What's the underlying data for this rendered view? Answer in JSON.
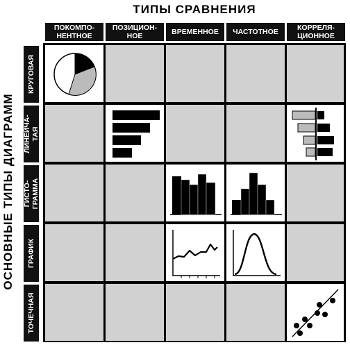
{
  "title_top": "ТИПЫ СРАВНЕНИЯ",
  "title_side": "ОСНОВНЫЕ ТИПЫ ДИАГРАММ",
  "columns": [
    "ПОКОМПО-\nНЕНТНОЕ",
    "ПОЗИЦИОН-\nНОЕ",
    "ВРЕМЕННОЕ",
    "ЧАСТОТНОЕ",
    "КОРРЕЛЯ-\nЦИОННОЕ"
  ],
  "rows": [
    "КРУГОВАЯ",
    "ЛИНЕЙЧА-\nТАЯ",
    "ГИСТО-\nГРАММА",
    "ГРАФИК",
    "ТОЧЕЧНАЯ"
  ],
  "colors": {
    "header_bg": "#111111",
    "inactive_cell": "#d1d1d1",
    "active_cell": "#ffffff",
    "ink": "#000000",
    "light_fill": "#bbbbbb"
  },
  "cells": [
    {
      "row": 0,
      "col": 0,
      "icon": "pie-chart-icon"
    },
    {
      "row": 1,
      "col": 1,
      "icon": "horizontal-bar-chart-icon"
    },
    {
      "row": 1,
      "col": 4,
      "icon": "paired-bar-chart-icon"
    },
    {
      "row": 2,
      "col": 2,
      "icon": "histogram-time-icon"
    },
    {
      "row": 2,
      "col": 3,
      "icon": "histogram-frequency-icon"
    },
    {
      "row": 3,
      "col": 2,
      "icon": "line-graph-icon"
    },
    {
      "row": 3,
      "col": 3,
      "icon": "bell-curve-icon"
    },
    {
      "row": 4,
      "col": 4,
      "icon": "scatter-plot-icon"
    }
  ]
}
